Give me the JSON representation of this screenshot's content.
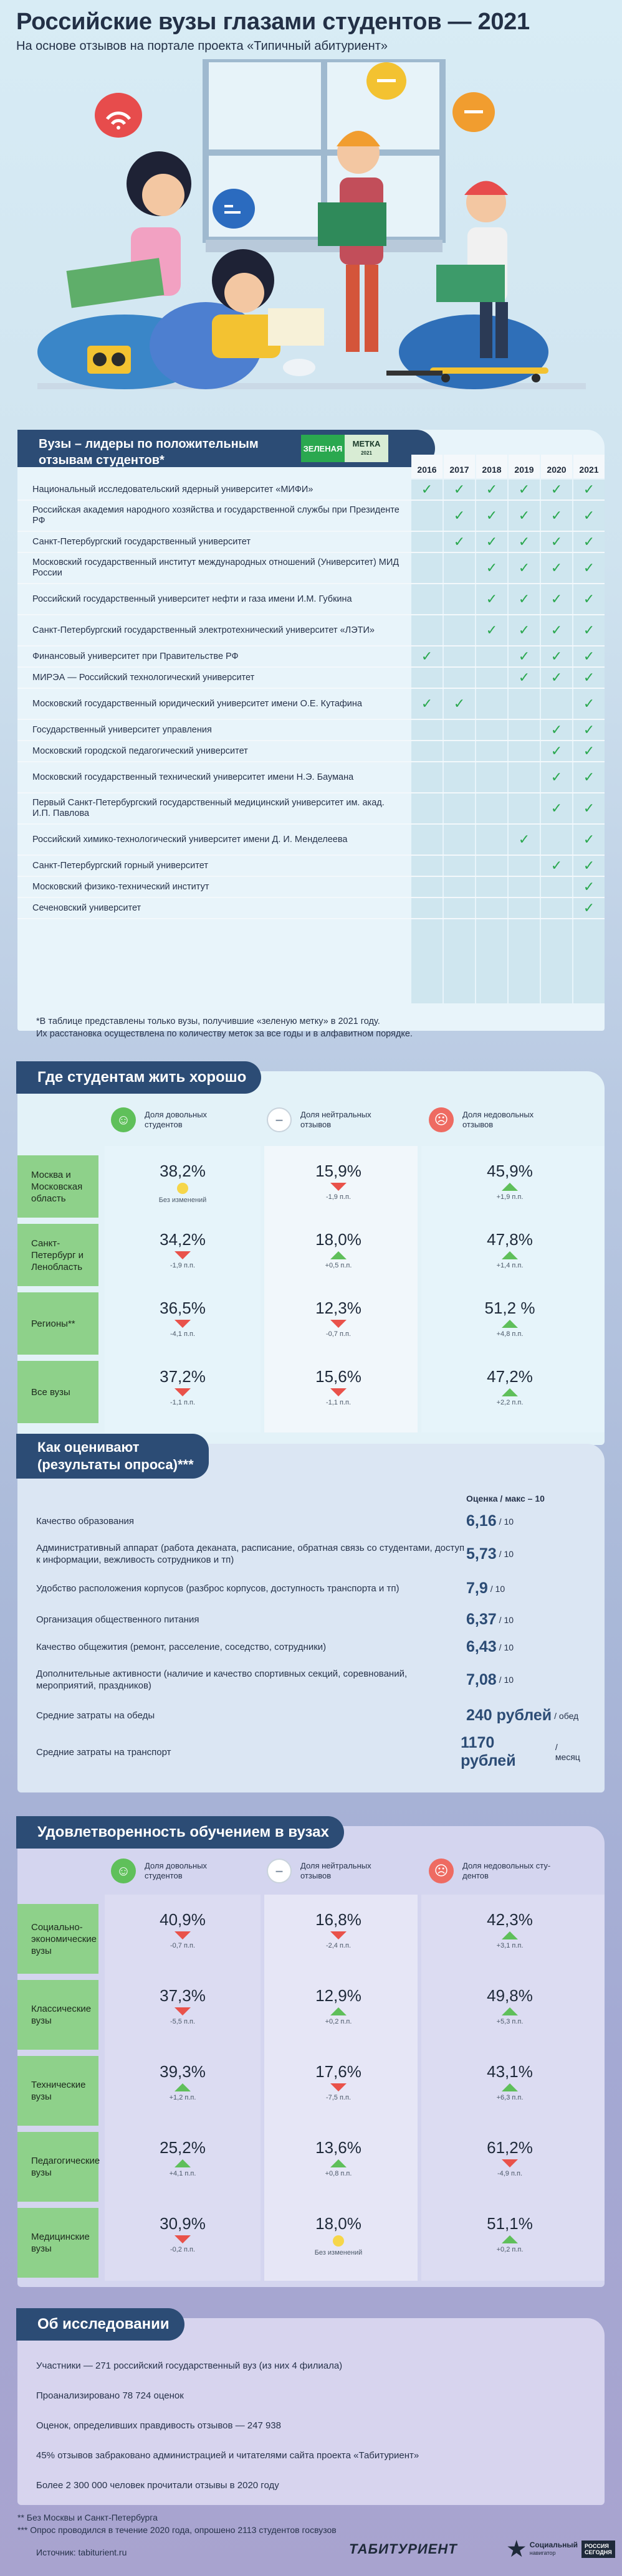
{
  "header": {
    "title": "Российские вузы глазами студентов — 2021",
    "subtitle": "На основе отзывов на портале проекта «Типичный абитуриент»"
  },
  "leaders": {
    "title_line1": "Вузы – лидеры по положительным",
    "title_line2": "отзывам студентов*",
    "badge_left": "ЗЕЛЕНАЯ",
    "badge_right": "МЕТКА",
    "badge_year": "2021",
    "years": [
      "2016",
      "2017",
      "2018",
      "2019",
      "2020",
      "2021"
    ],
    "rows": [
      {
        "name": "Национальный исследовательский ядерный университет «МИФИ»",
        "marks": [
          1,
          1,
          1,
          1,
          1,
          1
        ]
      },
      {
        "name": "Российская академия народного хозяйства и государственной службы при Президенте РФ",
        "marks": [
          0,
          1,
          1,
          1,
          1,
          1
        ]
      },
      {
        "name": "Санкт-Петербургский государственный университет",
        "marks": [
          0,
          1,
          1,
          1,
          1,
          1
        ]
      },
      {
        "name": "Московский государственный институт международных отношений (Университет) МИД России",
        "marks": [
          0,
          0,
          1,
          1,
          1,
          1
        ]
      },
      {
        "name": "Российский государственный университет нефти и газа имени И.М. Губкина",
        "marks": [
          0,
          0,
          1,
          1,
          1,
          1
        ]
      },
      {
        "name": "Санкт-Петербургский государственный электротехнический университет «ЛЭТИ»",
        "marks": [
          0,
          0,
          1,
          1,
          1,
          1
        ]
      },
      {
        "name": "Финансовый университет при Правительстве РФ",
        "marks": [
          1,
          0,
          0,
          1,
          1,
          1
        ]
      },
      {
        "name": "МИРЭА — Российский технологический университет",
        "marks": [
          0,
          0,
          0,
          1,
          1,
          1
        ]
      },
      {
        "name": "Московский государственный юридический университет имени О.Е. Кутафина",
        "marks": [
          1,
          1,
          0,
          0,
          0,
          1
        ]
      },
      {
        "name": "Государственный университет управления",
        "marks": [
          0,
          0,
          0,
          0,
          1,
          1
        ]
      },
      {
        "name": "Московский городской педагогический университет",
        "marks": [
          0,
          0,
          0,
          0,
          1,
          1
        ]
      },
      {
        "name": "Московский государственный технический университет имени Н.Э. Баумана",
        "marks": [
          0,
          0,
          0,
          0,
          1,
          1
        ]
      },
      {
        "name": "Первый Санкт-Петербургский государственный медицинский университет им. акад. И.П. Павлова",
        "marks": [
          0,
          0,
          0,
          0,
          1,
          1
        ]
      },
      {
        "name": "Российский химико-технологический университет имени Д. И. Менделеева",
        "marks": [
          0,
          0,
          0,
          1,
          0,
          1
        ]
      },
      {
        "name": "Санкт-Петербургский горный университет",
        "marks": [
          0,
          0,
          0,
          0,
          1,
          1
        ]
      },
      {
        "name": "Московский физико-технический институт",
        "marks": [
          0,
          0,
          0,
          0,
          0,
          1
        ]
      },
      {
        "name": "Сеченовский университет",
        "marks": [
          0,
          0,
          0,
          0,
          0,
          1
        ]
      }
    ],
    "check": "✓",
    "footnote_line1": "*В таблице представлены только вузы, получившие «зеленую метку» в 2021 году.",
    "footnote_line2": "Их расстановка осуществлена по количеству меток за все годы и в алфавитном порядке."
  },
  "living": {
    "title": "Где студентам жить хорошо",
    "col_pos": "Доля довольных студентов",
    "col_neu": "Доля нейтральных отзывов",
    "col_neg": "Доля недовольных отзывов",
    "rows": [
      {
        "label": "Москва и Московская область",
        "pos": "38,2%",
        "pos_d": "Без изменений",
        "pos_t": "none",
        "neu": "15,9%",
        "neu_d": "-1,9 п.п.",
        "neu_t": "down",
        "neg": "45,9%",
        "neg_d": "+1,9 п.п.",
        "neg_t": "up"
      },
      {
        "label": "Санкт-Петербург и Ленобласть",
        "pos": "34,2%",
        "pos_d": "-1,9 п.п.",
        "pos_t": "down",
        "neu": "18,0%",
        "neu_d": "+0,5 п.п.",
        "neu_t": "up",
        "neg": "47,8%",
        "neg_d": "+1,4 п.п.",
        "neg_t": "up"
      },
      {
        "label": "Регионы**",
        "pos": "36,5%",
        "pos_d": "-4,1 п.п.",
        "pos_t": "down",
        "neu": "12,3%",
        "neu_d": "-0,7 п.п.",
        "neu_t": "down",
        "neg": "51,2 %",
        "neg_d": "+4,8 п.п.",
        "neg_t": "up"
      },
      {
        "label": "Все вузы",
        "pos": "37,2%",
        "pos_d": "-1,1 п.п.",
        "pos_t": "down",
        "neu": "15,6%",
        "neu_d": "-1,1 п.п.",
        "neu_t": "down",
        "neg": "47,2%",
        "neg_d": "+2,2 п.п.",
        "neg_t": "up"
      }
    ]
  },
  "survey": {
    "title_line1": "Как оценивают",
    "title_line2": "(результаты опроса)***",
    "scale_label": "Оценка / макс – 10",
    "rows": [
      {
        "name": "Качество образования",
        "value": "6,16",
        "unit": "/ 10"
      },
      {
        "name": "Административный аппарат (работа деканата, расписание, обратная связь со студентами, доступ к информации, вежливость сотрудников и тп)",
        "value": "5,73",
        "unit": "/ 10"
      },
      {
        "name": "Удобство расположения корпусов (разброс корпусов, доступность транспорта и тп)",
        "value": "7,9",
        "unit": "/ 10"
      },
      {
        "name": "Организация общественного питания",
        "value": "6,37",
        "unit": "/ 10"
      },
      {
        "name": "Качество общежития (ремонт, расселение, соседство, сотрудники)",
        "value": "6,43",
        "unit": "/ 10"
      },
      {
        "name": "Дополнительные активности (наличие и качество спортивных секций, соревнований, мероприятий, праздников)",
        "value": "7,08",
        "unit": "/ 10"
      },
      {
        "name": "Средние затраты на обеды",
        "value": "240 рублей",
        "unit": "/ обед"
      },
      {
        "name": "Средние затраты на транспорт",
        "value": "1170 рублей",
        "unit": "/ месяц"
      }
    ]
  },
  "satisfaction": {
    "title": "Удовлетворенность обучением в вузах",
    "col_pos": "Доля довольных студентов",
    "col_neu": "Доля нейтральных отзывов",
    "col_neg": "Доля недовольных сту-дентов",
    "rows": [
      {
        "label": "Социально-экономические вузы",
        "pos": "40,9%",
        "pos_d": "-0,7 п.п.",
        "pos_t": "down",
        "neu": "16,8%",
        "neu_d": "-2,4 п.п.",
        "neu_t": "down",
        "neg": "42,3%",
        "neg_d": "+3,1 п.п.",
        "neg_t": "up"
      },
      {
        "label": "Классические вузы",
        "pos": "37,3%",
        "pos_d": "-5,5 п.п.",
        "pos_t": "down",
        "neu": "12,9%",
        "neu_d": "+0,2 п.п.",
        "neu_t": "up",
        "neg": "49,8%",
        "neg_d": "+5,3 п.п.",
        "neg_t": "up"
      },
      {
        "label": "Технические вузы",
        "pos": "39,3%",
        "pos_d": "+1,2 п.п.",
        "pos_t": "up",
        "neu": "17,6%",
        "neu_d": "-7,5 п.п.",
        "neu_t": "down",
        "neg": "43,1%",
        "neg_d": "+6,3 п.п.",
        "neg_t": "up"
      },
      {
        "label": "Педагогические вузы",
        "pos": "25,2%",
        "pos_d": "+4,1 п.п.",
        "pos_t": "up",
        "neu": "13,6%",
        "neu_d": "+0,8 п.п.",
        "neu_t": "up",
        "neg": "61,2%",
        "neg_d": "-4,9 п.п.",
        "neg_t": "down"
      },
      {
        "label": "Медицинские вузы",
        "pos": "30,9%",
        "pos_d": "-0,2 п.п.",
        "pos_t": "down",
        "neu": "18,0%",
        "neu_d": "Без изменений",
        "neu_t": "none",
        "neg": "51,1%",
        "neg_d": "+0,2 п.п.",
        "neg_t": "up"
      }
    ]
  },
  "about": {
    "title": "Об исследовании",
    "rows": [
      "Участники — 271 российский государственный вуз (из них 4 филиала)",
      "Проанализировано 78 724 оценок",
      "Оценок, определивших правдивость отзывов — 247 938",
      "45% отзывов забраковано администрацией и читателями сайта проекта «Табитуриент»",
      "Более 2 300 000 человек прочитали отзывы в 2020 году"
    ]
  },
  "footnotes": {
    "f2": "** Без Москвы и Санкт-Петербурга",
    "f3": "*** Опрос проводился в течение 2020 года, опрошено 2113 студентов госвузов",
    "source": "Источник: tabiturient.ru"
  },
  "logos": {
    "tabiturient": "ТАБИТУРИЕНТ",
    "social_line1": "Социальный",
    "social_line2": "навигатор",
    "rs_line1": "РОССИЯ",
    "rs_line2": "СЕГОДНЯ"
  },
  "colors": {
    "navy": "#2c4c75",
    "green": "#5fbf5a",
    "red": "#e9524a",
    "yellow": "#f6d64a",
    "tick": "#2aa84f"
  }
}
